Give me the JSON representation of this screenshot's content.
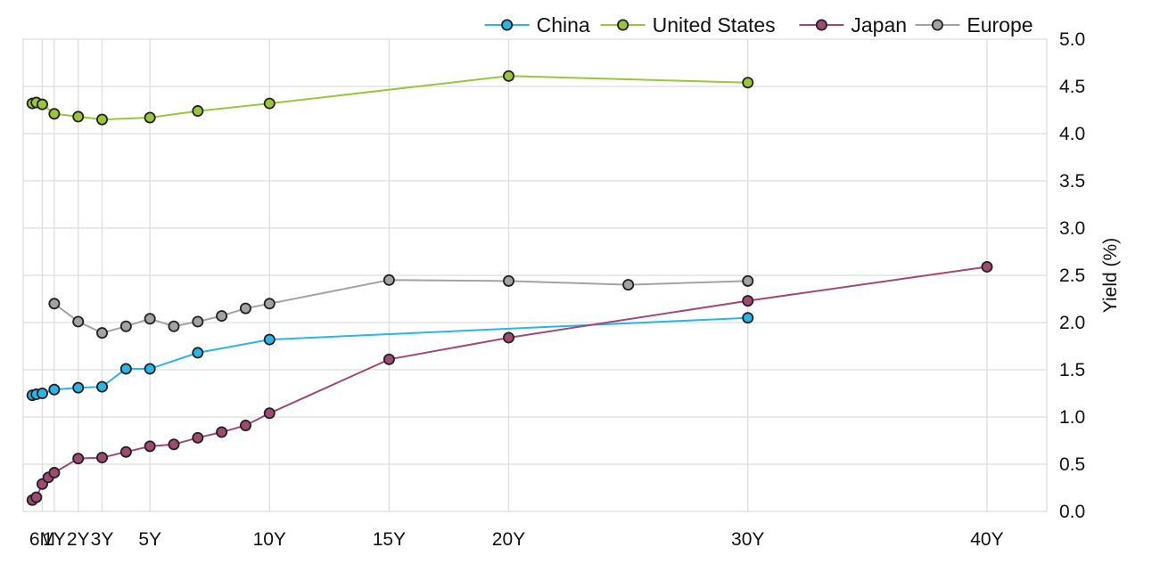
{
  "chart_data": {
    "type": "line",
    "title": "",
    "xlabel": "",
    "ylabel": "Yield (%)",
    "ylim": [
      0,
      5
    ],
    "yticks": [
      "0.0",
      "0.5",
      "1.0",
      "1.5",
      "2.0",
      "2.5",
      "3.0",
      "3.5",
      "4.0",
      "4.5",
      "5.0"
    ],
    "y_axis_side": "right",
    "grid": true,
    "legend_position": "top-right",
    "x_unit": "years",
    "xlim": [
      -0.3,
      42.5
    ],
    "xticks": [
      {
        "value": 0.5,
        "label": "6M"
      },
      {
        "value": 1,
        "label": "1Y"
      },
      {
        "value": 2,
        "label": "2Y"
      },
      {
        "value": 3,
        "label": "3Y"
      },
      {
        "value": 5,
        "label": "5Y"
      },
      {
        "value": 10,
        "label": "10Y"
      },
      {
        "value": 15,
        "label": "15Y"
      },
      {
        "value": 20,
        "label": "20Y"
      },
      {
        "value": 30,
        "label": "30Y"
      },
      {
        "value": 40,
        "label": "40Y"
      }
    ],
    "series": [
      {
        "name": "China",
        "color": "#29b5e6",
        "x": [
          0.083,
          0.25,
          0.5,
          1,
          2,
          3,
          4,
          5,
          7,
          10,
          30
        ],
        "y": [
          1.23,
          1.24,
          1.25,
          1.29,
          1.31,
          1.32,
          1.51,
          1.51,
          1.68,
          1.82,
          2.05
        ]
      },
      {
        "name": "United States",
        "color": "#9ac63a",
        "x": [
          0.083,
          0.25,
          0.5,
          1,
          2,
          3,
          5,
          7,
          10,
          20,
          30
        ],
        "y": [
          4.32,
          4.33,
          4.31,
          4.21,
          4.18,
          4.15,
          4.17,
          4.24,
          4.32,
          4.61,
          4.54
        ]
      },
      {
        "name": "Japan",
        "color": "#a04a72",
        "x": [
          0.083,
          0.25,
          0.5,
          0.75,
          1,
          2,
          3,
          4,
          5,
          6,
          7,
          8,
          9,
          10,
          15,
          20,
          30,
          40
        ],
        "y": [
          0.12,
          0.15,
          0.29,
          0.36,
          0.41,
          0.56,
          0.57,
          0.63,
          0.69,
          0.71,
          0.78,
          0.84,
          0.91,
          1.04,
          1.61,
          1.84,
          2.23,
          2.59
        ]
      },
      {
        "name": "Europe",
        "color": "#a3a3a3",
        "x": [
          1,
          2,
          3,
          4,
          5,
          6,
          7,
          8,
          9,
          10,
          15,
          20,
          25,
          30
        ],
        "y": [
          2.2,
          2.01,
          1.89,
          1.96,
          2.04,
          1.96,
          2.01,
          2.07,
          2.15,
          2.2,
          2.45,
          2.44,
          2.4,
          2.44
        ]
      }
    ]
  }
}
